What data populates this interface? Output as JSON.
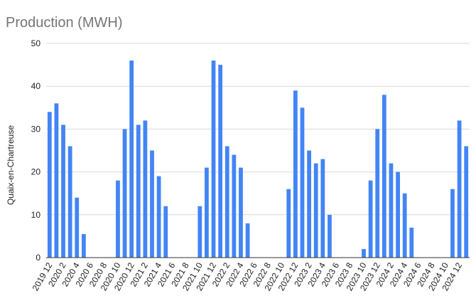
{
  "chart_data": {
    "type": "bar",
    "title": "Production (MWH)",
    "y_label": "Quaix-en-Chartreuse",
    "categories": [
      "2019 12",
      null,
      "2020 2",
      null,
      "2020 4",
      null,
      "2020 6",
      null,
      "2020 8",
      null,
      "2020 10",
      null,
      "2020 12",
      null,
      "2021 2",
      null,
      "2021 4",
      null,
      "2021 6",
      null,
      "2021 8",
      null,
      "2021 10",
      null,
      "2021 12",
      null,
      "2022 2",
      null,
      "2022 4",
      null,
      "2022 6",
      null,
      "2022 8",
      null,
      "2022 10",
      null,
      "2022 12",
      null,
      "2023 2",
      null,
      "2023 4",
      null,
      "2023 6",
      null,
      "2023 8",
      null,
      "2023 10",
      null,
      "2023 12",
      null,
      "2024 2",
      null,
      "2024 4",
      null,
      "2024 6",
      null,
      "2024 8",
      null,
      "2024 10",
      null,
      "2024 12",
      null
    ],
    "values": [
      34,
      36,
      31,
      26,
      14,
      5.5,
      null,
      null,
      null,
      null,
      18,
      30,
      46,
      31,
      32,
      25,
      19,
      12,
      null,
      null,
      null,
      null,
      12,
      21,
      46,
      45,
      26,
      24,
      21,
      8,
      null,
      null,
      null,
      null,
      null,
      16,
      39,
      35,
      25,
      22,
      23,
      10,
      null,
      null,
      null,
      null,
      2,
      18,
      30,
      38,
      22,
      20,
      15,
      7,
      null,
      null,
      null,
      null,
      null,
      16,
      32,
      26
    ],
    "color": "#4285f4",
    "ylim": [
      0,
      50
    ],
    "yticks": [
      0,
      10,
      20,
      30,
      40,
      50
    ],
    "grid": true
  }
}
